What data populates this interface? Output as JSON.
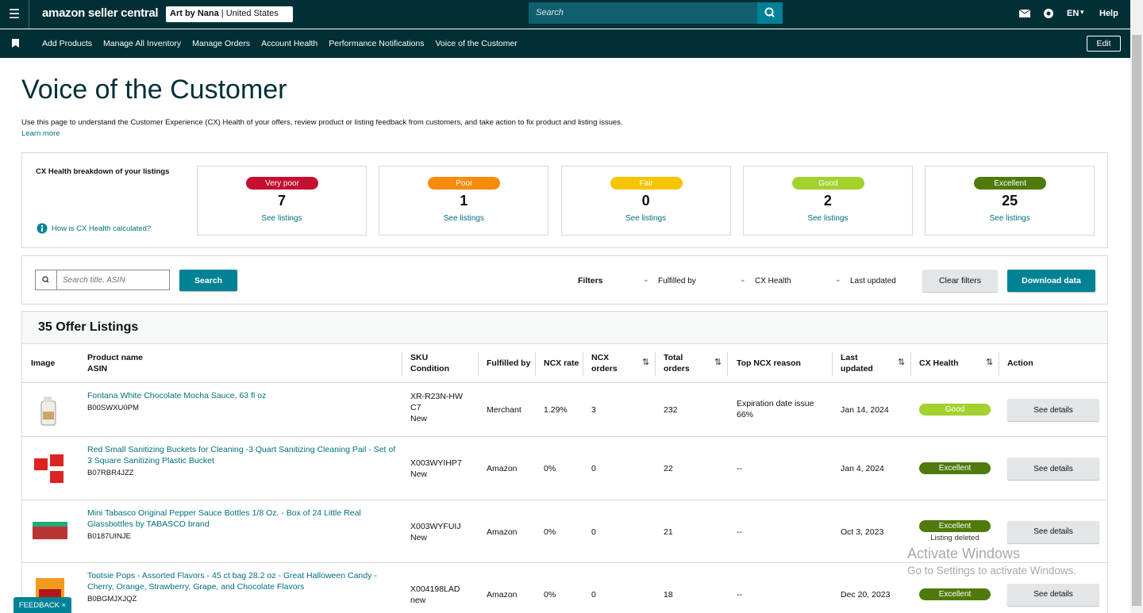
{
  "header": {
    "menu": "☰",
    "logo": "amazon seller central",
    "store": "Art by Nana",
    "region": "United States",
    "search_placeholder": "Search",
    "language": "EN",
    "help": "Help"
  },
  "nav": {
    "items": [
      "Add Products",
      "Manage All Inventory",
      "Manage Orders",
      "Account Health",
      "Performance Notifications",
      "Voice of the Customer"
    ],
    "edit": "Edit"
  },
  "page": {
    "title": "Voice of the Customer",
    "description": "Use this page to understand the Customer Experience (CX) Health of your offers, review product or listing feedback from customers, and take action to fix product and listing issues.",
    "learn_more": "Learn more"
  },
  "health": {
    "title": "CX Health breakdown of your listings",
    "help_link": "How is CX Health calculated?",
    "cards": [
      {
        "label": "Very poor",
        "count": 7,
        "link": "See listings"
      },
      {
        "label": "Poor",
        "count": 1,
        "link": "See listings"
      },
      {
        "label": "Fair",
        "count": 0,
        "link": "See listings"
      },
      {
        "label": "Good",
        "count": 2,
        "link": "See listings"
      },
      {
        "label": "Excellent",
        "count": 25,
        "link": "See listings"
      }
    ]
  },
  "toolbar": {
    "search_placeholder": "Search title, ASIN",
    "search_button": "Search",
    "filters_label": "Filters",
    "filters": [
      "Fulfilled by",
      "CX Health",
      "Last updated"
    ],
    "clear_filters": "Clear filters",
    "download": "Download data"
  },
  "listings": {
    "title": "35 Offer Listings",
    "columns": [
      [
        "Image"
      ],
      [
        "Product name",
        "ASIN"
      ],
      [
        "SKU",
        "Condition"
      ],
      [
        "Fulfilled by"
      ],
      [
        "NCX rate"
      ],
      [
        "NCX",
        "orders"
      ],
      [
        "Total",
        "orders"
      ],
      [
        "Top NCX reason"
      ],
      [
        "Last",
        "updated"
      ],
      [
        "CX Health"
      ],
      [
        "Action"
      ]
    ],
    "rows": [
      {
        "name": "Fontana White Chocolate Mocha Sauce, 63 fl oz",
        "asin": "B00SWXU0PM",
        "sku": "XR-R23N-HWC7",
        "condition": "New",
        "fulfilled_by": "Merchant",
        "ncx_rate": "1.29%",
        "ncx_orders": 3,
        "total_orders": 232,
        "reason": "Expiration date issue",
        "reason_share": "66%",
        "last_updated": "Jan 14, 2024",
        "health": "Good",
        "action": "See details"
      },
      {
        "name": "Red Small Sanitizing Buckets for Cleaning -3 Quart Sanitizing Cleaning Pail - Set of 3 Square Sanitizing Plastic Bucket",
        "asin": "B07RBR4JZZ",
        "sku": "X003WYIHP7",
        "condition": "New",
        "fulfilled_by": "Amazon",
        "ncx_rate": "0%",
        "ncx_orders": 0,
        "total_orders": 22,
        "reason": "--",
        "last_updated": "Jan 4, 2024",
        "health": "Excellent",
        "action": "See details"
      },
      {
        "name": "Mini Tabasco Original Pepper Sauce Bottles 1/8 Oz. - Box of 24 Little Real Glassbottles by TABASCO brand",
        "asin": "B0187UINJE",
        "sku": "X003WYFUIJ",
        "condition": "New",
        "fulfilled_by": "Amazon",
        "ncx_rate": "0%",
        "ncx_orders": 0,
        "total_orders": 21,
        "reason": "--",
        "last_updated": "Oct 3, 2023",
        "health": "Excellent",
        "health_note": "Listing deleted",
        "action": "See details"
      },
      {
        "name": "Tootsie Pops - Assorted Flavors - 45 ct bag 28.2 oz - Great Halloween Candy - Cherry, Orange, Strawberry, Grape, and Chocolate Flavors",
        "asin": "B0BGMJXJQZ",
        "sku": "X004198LAD",
        "condition": "new",
        "fulfilled_by": "Amazon",
        "ncx_rate": "0%",
        "ncx_orders": 0,
        "total_orders": 18,
        "reason": "--",
        "last_updated": "Dec 20, 2023",
        "health": "Excellent",
        "action": "See details"
      }
    ]
  },
  "feedback": "FEEDBACK ×",
  "watermark": {
    "title": "Activate Windows",
    "subtitle": "Go to Settings to activate Windows."
  }
}
